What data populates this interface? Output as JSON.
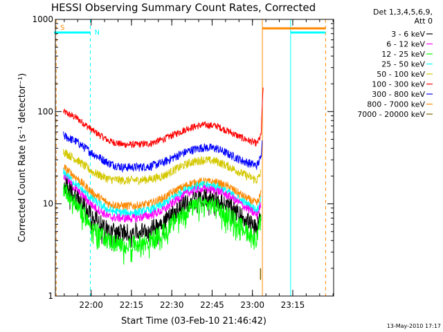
{
  "chart_data": {
    "type": "line",
    "title": "HESSI Observing Summary Count Rates, Corrected",
    "xlabel": "Start Time (03-Feb-10 21:46:42)",
    "ylabel": "Corrected Count Rate (s⁻¹ detector⁻¹)",
    "yscale": "log",
    "ylim": [
      1,
      1000
    ],
    "xlim_minutes_after_start": [
      0,
      103.5
    ],
    "x_ticks": [
      {
        "label": "22:00",
        "minutes": 13.3
      },
      {
        "label": "22:15",
        "minutes": 28.3
      },
      {
        "label": "22:30",
        "minutes": 43.3
      },
      {
        "label": "22:45",
        "minutes": 58.3
      },
      {
        "label": "23:00",
        "minutes": 73.3
      },
      {
        "label": "23:15",
        "minutes": 88.3
      }
    ],
    "y_ticks": [
      {
        "label": "1",
        "value": 1
      },
      {
        "label": "10",
        "value": 10
      },
      {
        "label": "100",
        "value": 100
      },
      {
        "label": "1000",
        "value": 1000
      }
    ],
    "legend_header": [
      "Det 1,3,4,5,6,9,",
      "Att 0"
    ],
    "series": [
      {
        "name": "3 - 6 keV",
        "color": "#000000",
        "x": [
          3,
          8,
          14,
          20,
          25,
          30,
          35,
          40,
          45,
          50,
          55,
          60,
          65,
          70,
          75,
          76.5
        ],
        "y": [
          17,
          12,
          7.5,
          5.2,
          5,
          5.1,
          5.3,
          6.5,
          8.7,
          11,
          12,
          11.5,
          9.5,
          7.2,
          5.5,
          8
        ]
      },
      {
        "name": "6 - 12 keV",
        "color": "#ff00ff",
        "x": [
          3,
          8,
          14,
          20,
          25,
          30,
          35,
          40,
          45,
          50,
          55,
          60,
          65,
          70,
          75,
          76.5
        ],
        "y": [
          20,
          14,
          9.5,
          7.2,
          7,
          7,
          7.5,
          8.5,
          11,
          13.5,
          14.5,
          14,
          12,
          9.5,
          7.5,
          10
        ]
      },
      {
        "name": "12 - 25 keV",
        "color": "#00ff00",
        "x": [
          3,
          8,
          14,
          20,
          25,
          30,
          35,
          40,
          45,
          50,
          55,
          60,
          65,
          70,
          75,
          76.5
        ],
        "y": [
          15,
          10,
          5.5,
          4,
          3.6,
          3.7,
          4,
          5,
          7,
          9,
          10,
          9.5,
          7.5,
          5.5,
          4.2,
          7
        ]
      },
      {
        "name": "25 - 50 keV",
        "color": "#00ffff",
        "x": [
          3,
          8,
          14,
          20,
          25,
          30,
          35,
          40,
          45,
          50,
          55,
          60,
          65,
          70,
          75,
          76.5
        ],
        "y": [
          22,
          16,
          11,
          8.5,
          8,
          8,
          8.5,
          9.8,
          12.5,
          15,
          16,
          15.5,
          13,
          10.5,
          8.5,
          11
        ]
      },
      {
        "name": "50 - 100 keV",
        "color": "#d4c800",
        "x": [
          3,
          8,
          14,
          20,
          25,
          30,
          35,
          40,
          45,
          50,
          55,
          60,
          65,
          70,
          75,
          76.5
        ],
        "y": [
          37,
          30,
          22,
          18.5,
          18,
          18,
          18.5,
          20,
          24,
          28,
          30,
          29,
          25,
          21,
          18,
          22
        ]
      },
      {
        "name": "100 - 300 keV",
        "color": "#ff0000",
        "x": [
          3,
          8,
          14,
          20,
          25,
          30,
          35,
          40,
          45,
          50,
          55,
          60,
          65,
          70,
          75,
          76.5,
          77,
          77.3
        ],
        "y": [
          100,
          85,
          62,
          48,
          44,
          44,
          45,
          50,
          58,
          67,
          72,
          70,
          60,
          51,
          45,
          55,
          120,
          200
        ]
      },
      {
        "name": "300 - 800 keV",
        "color": "#0000ff",
        "x": [
          3,
          8,
          14,
          20,
          25,
          30,
          35,
          40,
          45,
          50,
          55,
          60,
          65,
          70,
          75,
          76.5,
          77
        ],
        "y": [
          55,
          47,
          35,
          27.5,
          25,
          25,
          25.5,
          28,
          33,
          38,
          41,
          40,
          34,
          29,
          26,
          32,
          60
        ]
      },
      {
        "name": "800 - 7000 keV",
        "color": "#ff8800",
        "x": [
          3,
          8,
          14,
          20,
          25,
          30,
          35,
          40,
          45,
          50,
          55,
          60,
          65,
          70,
          75,
          76.5
        ],
        "y": [
          25,
          19,
          13,
          10,
          9.5,
          9.5,
          10,
          11.5,
          14,
          16.5,
          17.5,
          17,
          15,
          12,
          10,
          13
        ]
      },
      {
        "name": "7000 - 20000 keV",
        "color": "#806000",
        "x": [
          76.3,
          76.3
        ],
        "y": [
          1.5,
          2
        ]
      }
    ],
    "vertical_lines": [
      {
        "x": 0.3,
        "color": "#ff8800",
        "style": "dashed"
      },
      {
        "x": 13.0,
        "color": "#00ffff",
        "style": "dashed"
      },
      {
        "x": 77.0,
        "color": "#ff8800",
        "style": "solid"
      },
      {
        "x": 87.5,
        "color": "#00ffff",
        "style": "solid"
      },
      {
        "x": 100.5,
        "color": "#ff8800",
        "style": "dashed"
      }
    ],
    "top_flags": [
      {
        "label": "S",
        "label_color": "#ff8800",
        "x_start": -0.5,
        "x_end": 13.0,
        "bar_color": "#00ffff"
      },
      {
        "label": "N",
        "label_color": "#00ffff",
        "x_start": null,
        "x_end": null,
        "bar_color": "#00ffff"
      },
      {
        "label": "",
        "label_color": "",
        "x_start": 77.0,
        "x_end": 100.5,
        "bar_color": "#ff8800"
      },
      {
        "label": "",
        "label_color": "",
        "x_start": 87.5,
        "x_end": 100.5,
        "bar_color": "#00ffff"
      }
    ],
    "footer": "13-May-2010 17:17"
  }
}
